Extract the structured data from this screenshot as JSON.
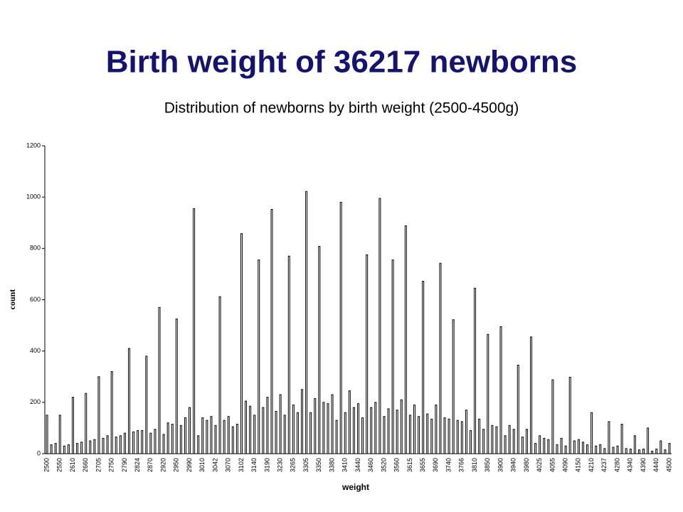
{
  "chart_data": {
    "type": "bar",
    "slide_title": "Birth weight of 36217 newborns",
    "title": "Distribution of newborns by birth weight (2500-4500g)",
    "xlabel": "weight",
    "ylabel": "count",
    "categories": [
      "2500",
      null,
      null,
      "2550",
      null,
      null,
      "2610",
      null,
      null,
      "2660",
      null,
      null,
      "2705",
      null,
      null,
      "2750",
      null,
      null,
      "2790",
      null,
      null,
      "2824",
      null,
      null,
      "2870",
      null,
      null,
      "2920",
      null,
      null,
      "2950",
      null,
      null,
      "2990",
      null,
      null,
      "3010",
      null,
      null,
      "3042",
      null,
      null,
      "3070",
      null,
      null,
      "3102",
      null,
      null,
      "3140",
      null,
      null,
      "3190",
      null,
      null,
      "3230",
      null,
      null,
      "3265",
      null,
      null,
      "3305",
      null,
      null,
      "3350",
      null,
      null,
      "3380",
      null,
      null,
      "3410",
      null,
      null,
      "3440",
      null,
      null,
      "3460",
      null,
      null,
      "3520",
      null,
      null,
      "3560",
      null,
      null,
      "3615",
      null,
      null,
      "3655",
      null,
      null,
      "3690",
      null,
      null,
      "3740",
      null,
      null,
      "3766",
      null,
      null,
      "3810",
      null,
      null,
      "3850",
      null,
      null,
      "3900",
      null,
      null,
      "3940",
      null,
      null,
      "3980",
      null,
      null,
      "4025",
      null,
      null,
      "4055",
      null,
      null,
      "4090",
      null,
      null,
      "4150",
      null,
      null,
      "4210",
      null,
      null,
      "4237",
      null,
      null,
      "4280",
      null,
      null,
      "4340",
      null,
      null,
      "4390",
      null,
      null,
      "4440",
      null,
      null,
      "4500"
    ],
    "values": [
      150,
      35,
      40,
      150,
      30,
      35,
      220,
      40,
      45,
      235,
      50,
      55,
      300,
      60,
      70,
      320,
      65,
      70,
      80,
      410,
      85,
      90,
      90,
      380,
      80,
      95,
      570,
      75,
      120,
      115,
      525,
      110,
      140,
      180,
      955,
      70,
      140,
      130,
      145,
      110,
      612,
      130,
      145,
      105,
      115,
      858,
      205,
      185,
      150,
      755,
      180,
      220,
      952,
      165,
      230,
      150,
      770,
      190,
      160,
      250,
      1022,
      160,
      215,
      808,
      200,
      195,
      230,
      130,
      980,
      160,
      245,
      180,
      195,
      140,
      775,
      180,
      200,
      995,
      145,
      175,
      755,
      170,
      210,
      888,
      150,
      190,
      145,
      672,
      155,
      135,
      190,
      742,
      140,
      135,
      522,
      130,
      125,
      170,
      90,
      645,
      135,
      95,
      465,
      110,
      105,
      495,
      70,
      110,
      95,
      345,
      65,
      95,
      455,
      40,
      70,
      60,
      55,
      288,
      35,
      60,
      30,
      298,
      50,
      55,
      45,
      35,
      160,
      30,
      35,
      20,
      125,
      25,
      30,
      115,
      20,
      18,
      70,
      15,
      18,
      100,
      10,
      18,
      50,
      15,
      40
    ],
    "color": "#000000",
    "ylim": [
      0,
      1200
    ],
    "yticks": [
      0,
      200,
      400,
      600,
      800,
      1000,
      1200
    ]
  }
}
